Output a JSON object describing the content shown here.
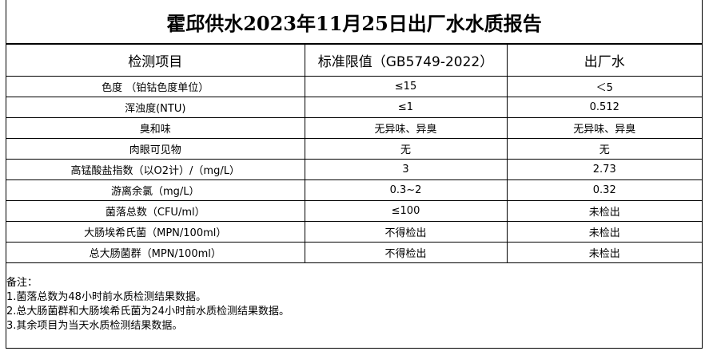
{
  "title": "霍邱供水2023年11月25日出厂水水质报告",
  "table": {
    "headers": [
      "检测项目",
      "标准限值（GB5749-2022）",
      "出厂水"
    ],
    "rows": [
      [
        "色度 （铂钴色度单位）",
        "≤15",
        "＜5"
      ],
      [
        "浑浊度(NTU)",
        "≤1",
        "0.512"
      ],
      [
        "臭和味",
        "无异味、异臭",
        "无异味、异臭"
      ],
      [
        "肉眼可见物",
        "无",
        "无"
      ],
      [
        "高锰酸盐指数（以O2计）/（mg/L）",
        "3",
        "2.73"
      ],
      [
        "游离余氯（mg/L）",
        "0.3~2",
        "0.32"
      ],
      [
        "菌落总数（CFU/ml）",
        "≤100",
        "未检出"
      ],
      [
        "大肠埃希氏菌（MPN/100ml）",
        "不得检出",
        "未检出"
      ],
      [
        "总大肠菌群（MPN/100ml）",
        "不得检出",
        "未检出"
      ]
    ]
  },
  "notes": {
    "heading": "备注：",
    "items": [
      "1.菌落总数为48小时前水质检测结果数据。",
      "2.总大肠菌群和大肠埃希氏菌为24小时前水质检测结果数据。",
      "3.其余项目为当天水质检测结果数据。"
    ]
  }
}
